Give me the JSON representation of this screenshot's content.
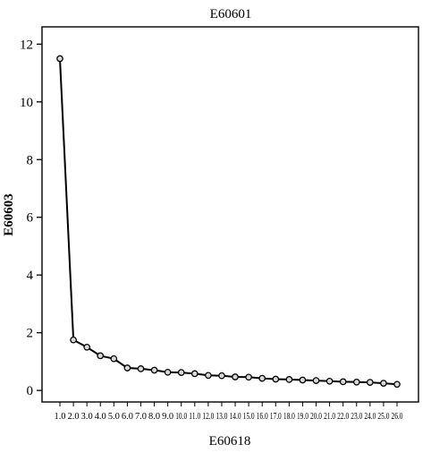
{
  "chart_data": {
    "type": "line",
    "title": "E60601",
    "xlabel": "E60618",
    "ylabel": "E60603",
    "categories": [
      "1.0",
      "2.0",
      "3.0",
      "4.0",
      "5.0",
      "6.0",
      "7.0",
      "8.0",
      "9.0",
      "10.0",
      "11.0",
      "12.0",
      "13.0",
      "14.0",
      "15.0",
      "16.0",
      "17.0",
      "18.0",
      "19.0",
      "20.0",
      "21.0",
      "22.0",
      "23.0",
      "24.0",
      "25.0",
      "26.0"
    ],
    "values": [
      11.5,
      1.75,
      1.5,
      1.2,
      1.1,
      0.78,
      0.75,
      0.7,
      0.63,
      0.62,
      0.58,
      0.52,
      0.51,
      0.47,
      0.46,
      0.42,
      0.39,
      0.38,
      0.36,
      0.34,
      0.32,
      0.3,
      0.29,
      0.28,
      0.25,
      0.21
    ],
    "ylim": [
      -0.4,
      12.6
    ],
    "yticks": [
      0,
      2,
      4,
      6,
      8,
      10,
      12
    ],
    "grid": false,
    "legend": "none",
    "colors": {
      "line": "#000000",
      "marker_fill": "#d8d8d8",
      "frame": "#000000"
    }
  }
}
